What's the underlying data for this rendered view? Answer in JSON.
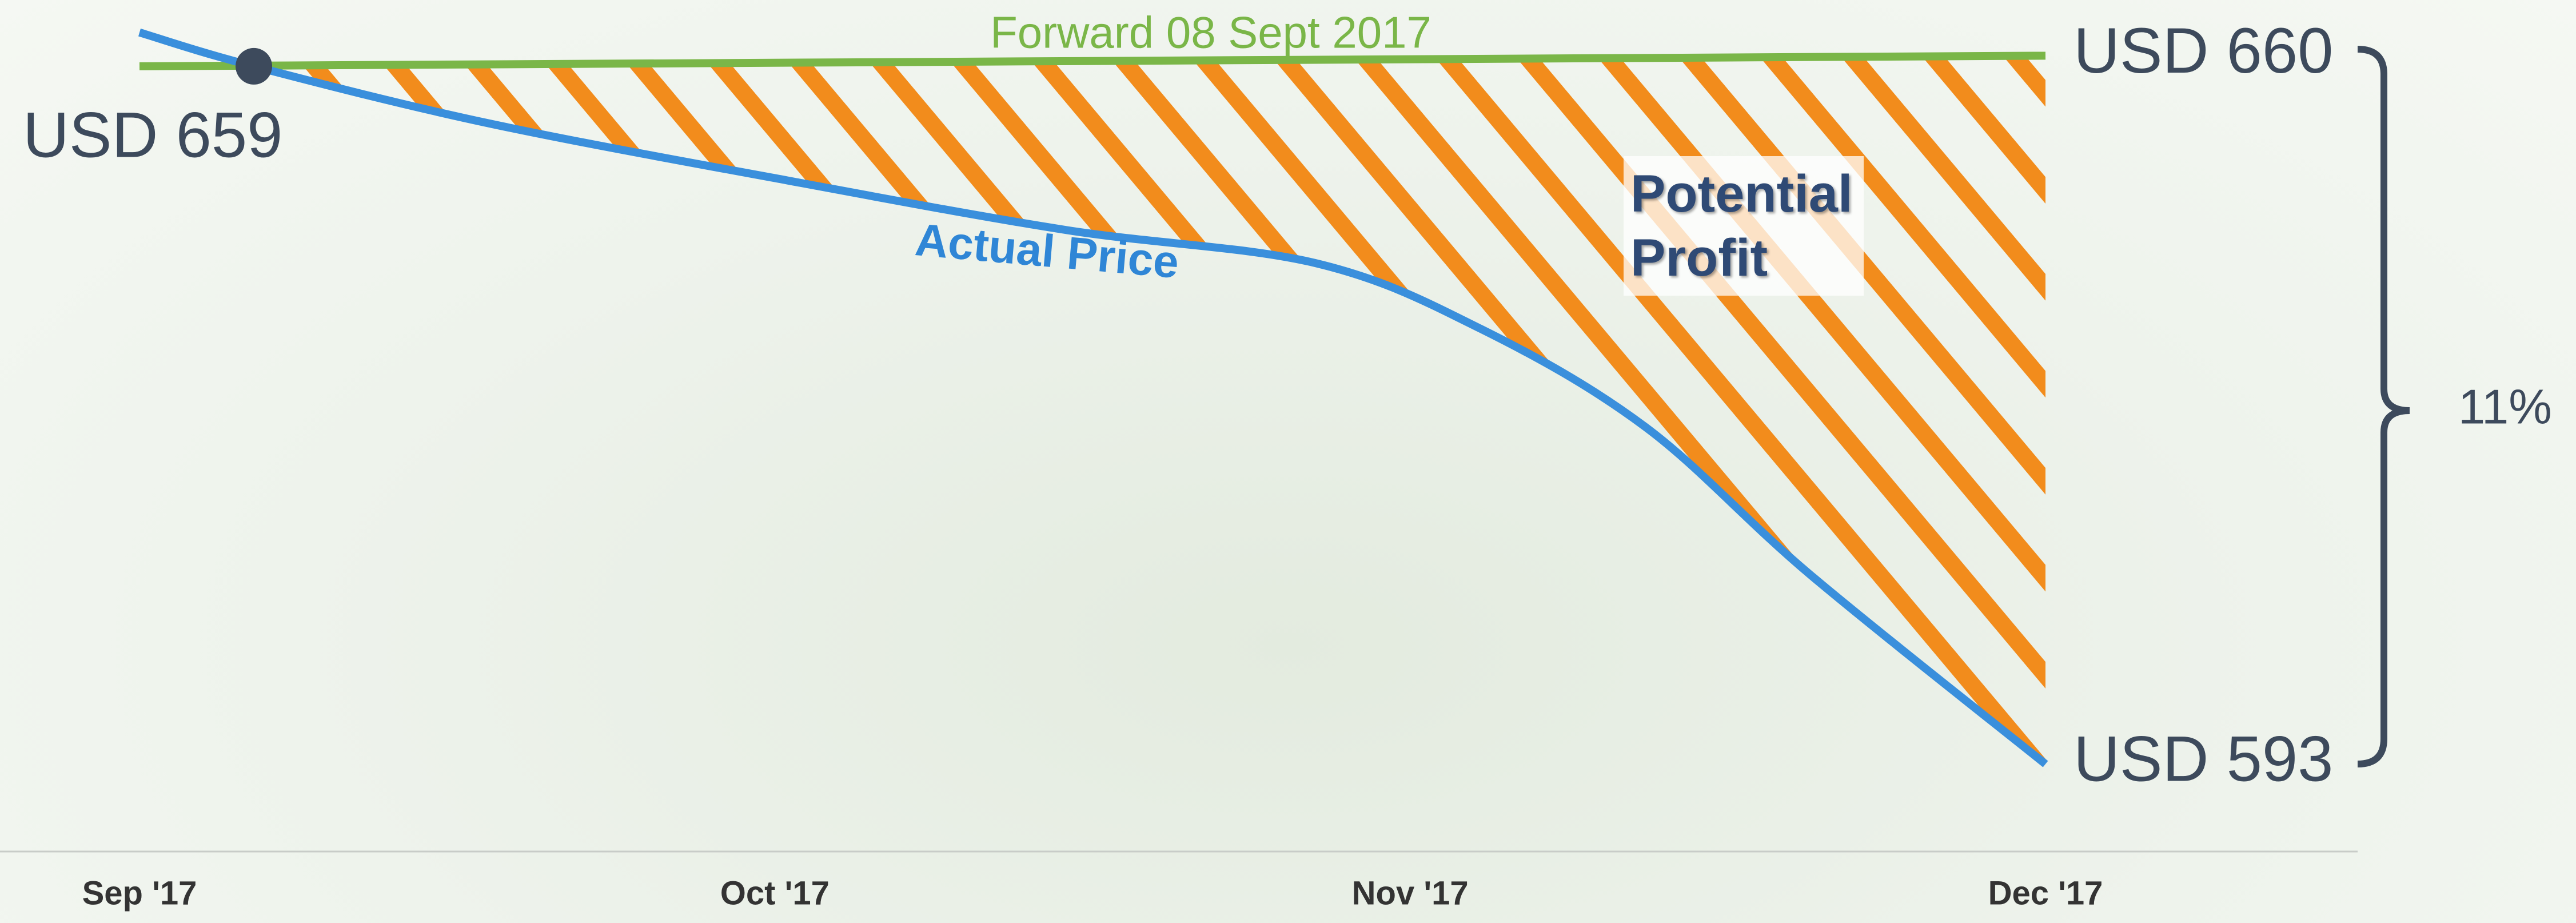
{
  "chart_data": {
    "type": "line",
    "xlim": [
      0,
      3
    ],
    "xticks": [
      {
        "value": 0,
        "label": "Sep '17"
      },
      {
        "value": 1,
        "label": "Oct '17"
      },
      {
        "value": 2,
        "label": "Nov '17"
      },
      {
        "value": 3,
        "label": "Dec '17"
      }
    ],
    "ylim": [
      585,
      665
    ],
    "series": [
      {
        "name": "Forward 08 Sept 2017",
        "color": "#7ab648",
        "x": [
          0,
          3
        ],
        "values": [
          659,
          660
        ],
        "value_labels": [
          "USD 659",
          "USD 660"
        ]
      },
      {
        "name": "Actual Price",
        "color": "#3a8fdc",
        "x": [
          0,
          0.18,
          0.55,
          1.02,
          1.46,
          1.85,
          2.11,
          2.37,
          2.63,
          3
        ],
        "values": [
          662.2,
          659,
          653.6,
          648.2,
          643.5,
          640.4,
          634.2,
          624.9,
          610.9,
          593
        ],
        "value_labels": [
          null,
          null,
          null,
          null,
          null,
          null,
          null,
          null,
          null,
          "USD 593"
        ]
      }
    ],
    "annotations": [
      "Potential Profit",
      "11%"
    ],
    "hatch_color": "#f28c1c"
  }
}
